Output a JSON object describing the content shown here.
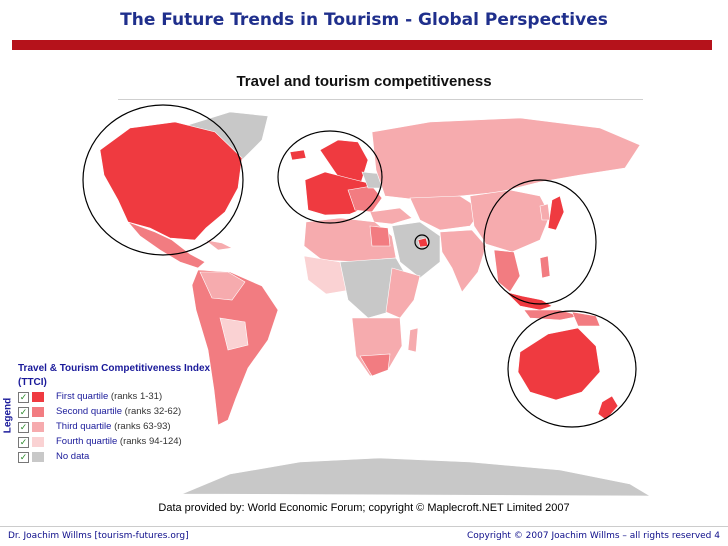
{
  "slide": {
    "title": "The Future Trends in Tourism - Global Perspectives",
    "title_color": "#1f2f8c",
    "bar_color": "#b5121b"
  },
  "map": {
    "title": "Travel and tourism competitiveness",
    "credit": "Data provided by: World Economic Forum; copyright © Maplecroft.NET Limited 2007",
    "colors": {
      "q1": "#ef3a40",
      "q2": "#f27c81",
      "q3": "#f6abae",
      "q4": "#fad2d3",
      "no_data": "#c8c8c8"
    },
    "highlighted_regions": [
      "North America",
      "Europe",
      "United Arab Emirates",
      "East Asia",
      "Australia and New Zealand"
    ]
  },
  "legend": {
    "side_label": "Legend",
    "title": "Travel & Tourism Competitiveness Index",
    "subtitle": "(TTCI)",
    "items": [
      {
        "label": "First quartile",
        "range": "(ranks 1-31)",
        "color": "#ef3a40"
      },
      {
        "label": "Second quartile",
        "range": "(ranks 32-62)",
        "color": "#f27c81"
      },
      {
        "label": "Third quartile",
        "range": "(ranks 63-93)",
        "color": "#f6abae"
      },
      {
        "label": "Fourth quartile",
        "range": "(ranks 94-124)",
        "color": "#fad2d3"
      },
      {
        "label": "No data",
        "range": "",
        "color": "#c8c8c8"
      }
    ]
  },
  "footer": {
    "left": "Dr. Joachim Willms [tourism-futures.org]",
    "right": "Copyright © 2007 Joachim Willms – all rights reserved  4"
  }
}
